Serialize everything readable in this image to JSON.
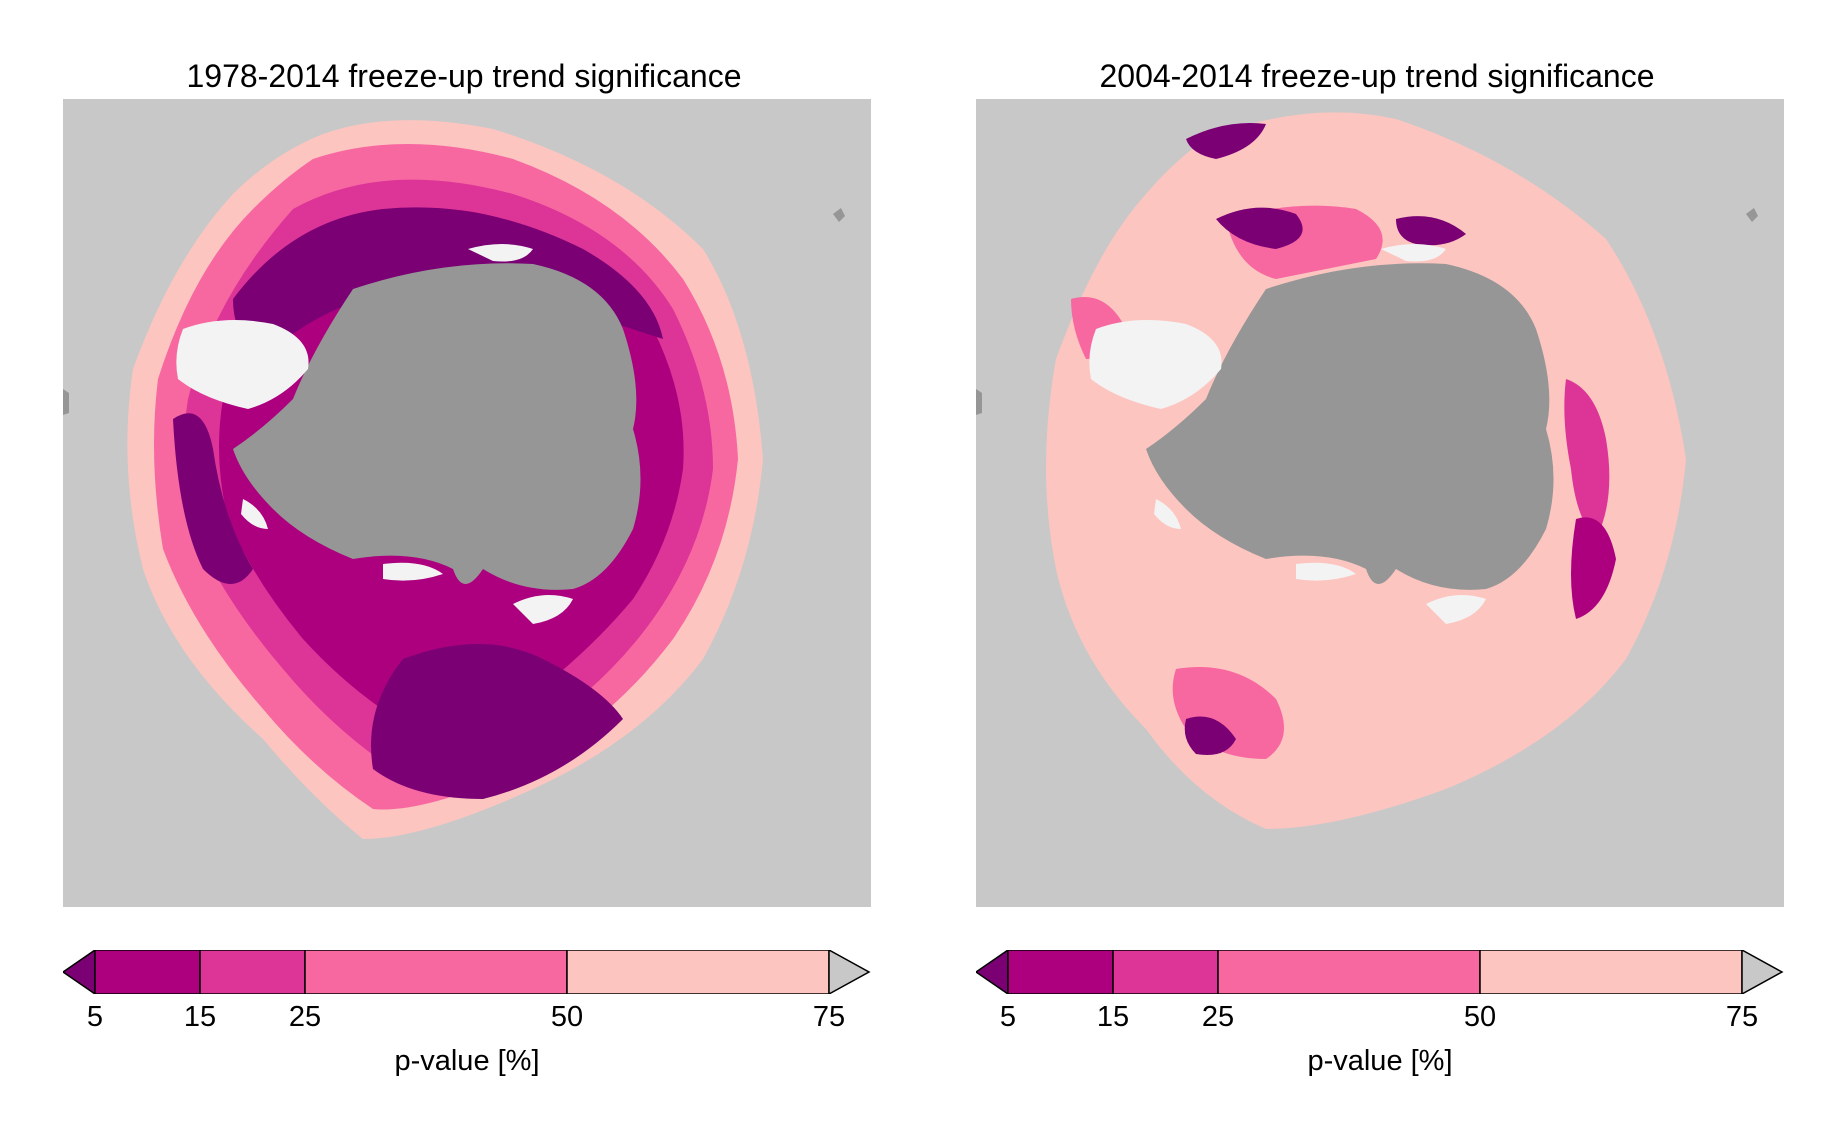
{
  "figure": {
    "panels": [
      {
        "title": "1978-2014 freeze-up trend significance",
        "colorbar": {
          "ticks": [
            "5",
            "15",
            "25",
            "50",
            "75"
          ],
          "label": "p-value [%]"
        }
      },
      {
        "title": "2004-2014 freeze-up trend significance",
        "colorbar": {
          "ticks": [
            "5",
            "15",
            "25",
            "50",
            "75"
          ],
          "label": "p-value [%]"
        }
      }
    ]
  },
  "legend": {
    "bins": [
      {
        "range": "< 5",
        "color": "#7a0074"
      },
      {
        "range": "5-15",
        "color": "#ac007f"
      },
      {
        "range": "15-25",
        "color": "#dd3497"
      },
      {
        "range": "25-50",
        "color": "#f768a1"
      },
      {
        "range": "50-75",
        "color": "#fcc5c0"
      },
      {
        "range": "> 75",
        "color": "#c8c8c8"
      }
    ],
    "boundaries": [
      5,
      15,
      25,
      50,
      75
    ],
    "extend": "both"
  },
  "colors": {
    "ocean_background": "#c8c8c8",
    "antarctica_land": "#969696",
    "ice_shelf": "#f3f3f3"
  }
}
